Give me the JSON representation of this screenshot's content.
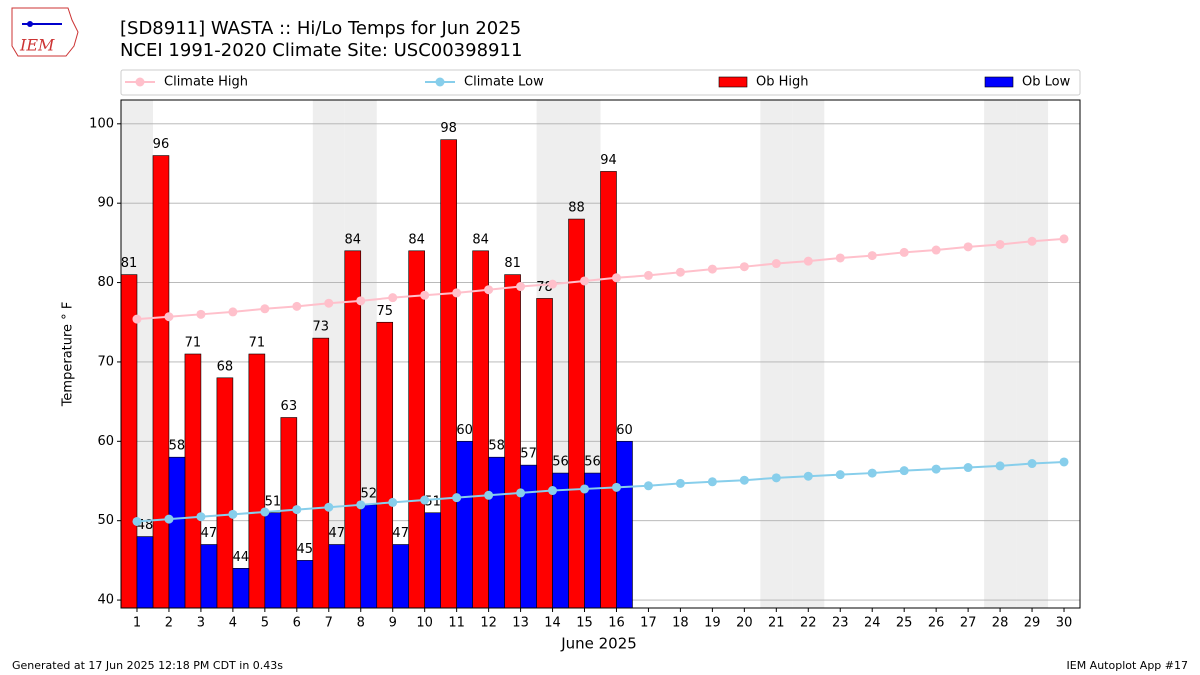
{
  "logo_text": "IEM",
  "chart_data": {
    "type": "bar",
    "title": "[SD8911] WASTA :: Hi/Lo Temps for Jun 2025",
    "subtitle": "NCEI 1991-2020 Climate Site: USC00398911",
    "x_label": "June 2025",
    "y_label": "Temperature ° F",
    "x": [
      1,
      2,
      3,
      4,
      5,
      6,
      7,
      8,
      9,
      10,
      11,
      12,
      13,
      14,
      15,
      16,
      17,
      18,
      19,
      20,
      21,
      22,
      23,
      24,
      25,
      26,
      27,
      28,
      29,
      30
    ],
    "xlim": [
      0.5,
      30.5
    ],
    "xticks": [
      1,
      2,
      3,
      4,
      5,
      6,
      7,
      8,
      9,
      10,
      11,
      12,
      13,
      14,
      15,
      16,
      17,
      18,
      19,
      20,
      21,
      22,
      23,
      24,
      25,
      26,
      27,
      28,
      29,
      30
    ],
    "ylim": [
      39,
      103
    ],
    "yticks": [
      40,
      50,
      60,
      70,
      80,
      90,
      100
    ],
    "grid": true,
    "shaded_days": [
      1,
      7,
      8,
      14,
      15,
      21,
      22,
      28,
      29
    ],
    "shade_color": "#eeeeee",
    "series": [
      {
        "name": "Climate High",
        "type": "line",
        "color": "#ffc0cb",
        "values": [
          75.4,
          75.7,
          76.0,
          76.3,
          76.7,
          77.0,
          77.4,
          77.7,
          78.1,
          78.4,
          78.7,
          79.1,
          79.5,
          79.8,
          80.2,
          80.6,
          80.9,
          81.3,
          81.7,
          82.0,
          82.4,
          82.7,
          83.1,
          83.4,
          83.8,
          84.1,
          84.5,
          84.8,
          85.2,
          85.5
        ]
      },
      {
        "name": "Climate Low",
        "type": "line",
        "color": "#87ceeb",
        "values": [
          49.9,
          50.2,
          50.5,
          50.8,
          51.1,
          51.4,
          51.7,
          52.0,
          52.3,
          52.6,
          52.9,
          53.2,
          53.5,
          53.8,
          54.0,
          54.2,
          54.4,
          54.7,
          54.9,
          55.1,
          55.4,
          55.6,
          55.8,
          56.0,
          56.3,
          56.5,
          56.7,
          56.9,
          57.2,
          57.4
        ]
      },
      {
        "name": "Ob High",
        "type": "bar",
        "color": "#ff0000",
        "values": [
          81,
          96,
          71,
          68,
          71,
          63,
          73,
          84,
          75,
          84,
          98,
          84,
          81,
          78,
          88,
          94,
          null,
          null,
          null,
          null,
          null,
          null,
          null,
          null,
          null,
          null,
          null,
          null,
          null,
          null
        ]
      },
      {
        "name": "Ob Low",
        "type": "bar",
        "color": "#0000ff",
        "values": [
          48,
          58,
          47,
          44,
          51,
          45,
          47,
          52,
          47,
          51,
          60,
          58,
          57,
          56,
          56,
          60,
          null,
          null,
          null,
          null,
          null,
          null,
          null,
          null,
          null,
          null,
          null,
          null,
          null,
          null
        ]
      }
    ],
    "footer_left": "Generated at 17 Jun 2025 12:18 PM CDT in 0.43s",
    "footer_right": "IEM Autoplot App #17"
  }
}
